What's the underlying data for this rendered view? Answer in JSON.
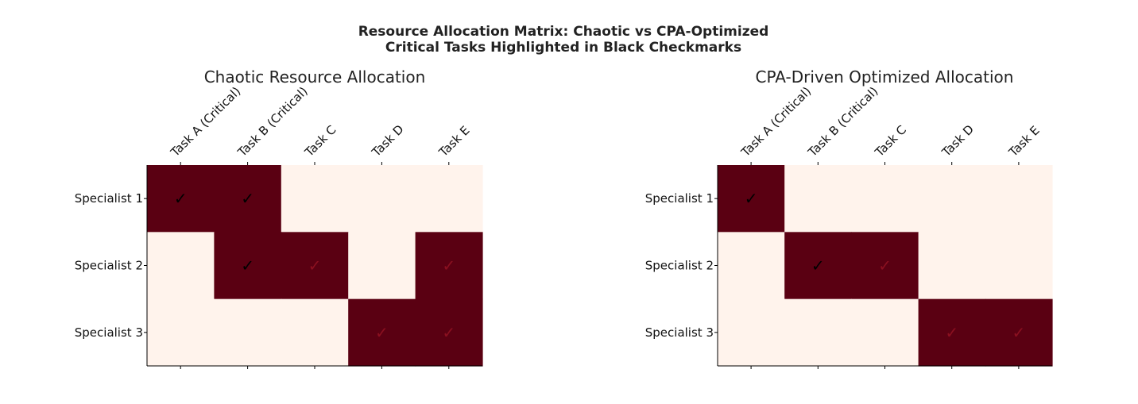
{
  "title_lines": [
    "Resource Allocation Matrix: Chaotic vs CPA-Optimized",
    "Critical Tasks Highlighted in Black Checkmarks"
  ],
  "check_symbol": "✓",
  "colors": {
    "assigned": "#5a0012",
    "unassigned": "#fff3ec",
    "critical_check": "#000000",
    "noncritical_check": "#8b1020"
  },
  "chart_data": [
    {
      "type": "heatmap",
      "title": "Chaotic Resource Allocation",
      "columns": [
        "Task A (Critical)",
        "Task B (Critical)",
        "Task C",
        "Task D",
        "Task E"
      ],
      "rows": [
        "Specialist 1",
        "Specialist 2",
        "Specialist 3"
      ],
      "critical_columns": [
        0,
        1
      ],
      "values": [
        [
          1,
          1,
          0,
          0,
          0
        ],
        [
          0,
          1,
          1,
          0,
          1
        ],
        [
          0,
          0,
          0,
          1,
          1
        ]
      ]
    },
    {
      "type": "heatmap",
      "title": "CPA-Driven Optimized Allocation",
      "columns": [
        "Task A (Critical)",
        "Task B (Critical)",
        "Task C",
        "Task D",
        "Task E"
      ],
      "rows": [
        "Specialist 1",
        "Specialist 2",
        "Specialist 3"
      ],
      "critical_columns": [
        0,
        1
      ],
      "values": [
        [
          1,
          0,
          0,
          0,
          0
        ],
        [
          0,
          1,
          1,
          0,
          0
        ],
        [
          0,
          0,
          0,
          1,
          1
        ]
      ]
    }
  ]
}
